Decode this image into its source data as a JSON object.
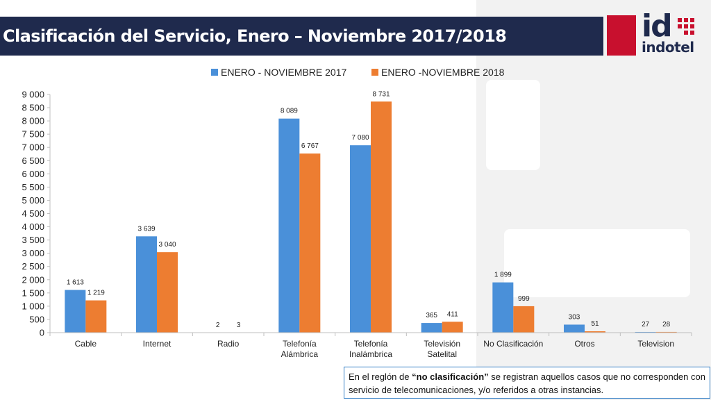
{
  "header": {
    "title": "Clasificación del Servicio, Enero – Noviembre 2017/2018"
  },
  "logo": {
    "mark": "id",
    "wordmark": "indotel",
    "brand_color": "#c8102e",
    "navy_color": "#1f2a4d"
  },
  "chart_data": {
    "type": "bar",
    "categories": [
      [
        "Cable"
      ],
      [
        "Internet"
      ],
      [
        "Radio"
      ],
      [
        "Telefonía",
        "Alámbrica"
      ],
      [
        "Telefonía",
        "Inalámbrica"
      ],
      [
        "Televisión",
        "Satelital"
      ],
      [
        "No Clasificación"
      ],
      [
        "Otros"
      ],
      [
        "Television"
      ]
    ],
    "series": [
      {
        "name": "ENERO - NOVIEMBRE 2017",
        "color": "#4a90d9",
        "values": [
          1613,
          3639,
          2,
          8089,
          7080,
          365,
          1899,
          303,
          27
        ],
        "labels": [
          "1 613",
          "3 639",
          "2",
          "8 089",
          "7 080",
          "365",
          "1 899",
          "303",
          "27"
        ]
      },
      {
        "name": "ENERO -NOVIEMBRE 2018",
        "color": "#ed7d31",
        "values": [
          1219,
          3040,
          3,
          6767,
          8731,
          411,
          999,
          51,
          28
        ],
        "labels": [
          "1 219",
          "3 040",
          "3",
          "6 767",
          "8 731",
          "411",
          "999",
          "51",
          "28"
        ]
      }
    ],
    "ylim": [
      0,
      9000
    ],
    "yticks": [
      0,
      500,
      1000,
      1500,
      2000,
      2500,
      3000,
      3500,
      4000,
      4500,
      5000,
      5500,
      6000,
      6500,
      7000,
      7500,
      8000,
      8500,
      9000
    ],
    "ytick_labels": [
      "0",
      "500",
      "1 000",
      "1 500",
      "2 000",
      "2 500",
      "3 000",
      "3 500",
      "4 000",
      "4 500",
      "5 000",
      "5 500",
      "6 000",
      "6 500",
      "7 000",
      "7 500",
      "8 000",
      "8 500",
      "9 000"
    ],
    "grid": false,
    "legend_position": "top"
  },
  "note": {
    "prefix": "En el reglón de ",
    "bold": "“no clasificación”",
    "suffix": " se registran aquellos casos que no corresponden con servicio de telecomunicaciones, y/o referidos a otras instancias."
  }
}
